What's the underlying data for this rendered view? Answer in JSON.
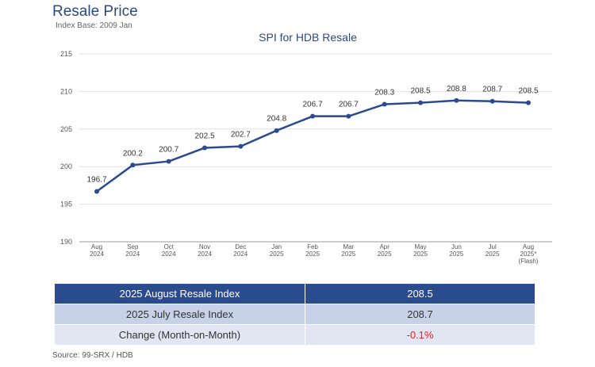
{
  "header": {
    "title": "Resale Price",
    "subtitle": "Index Base: 2009 Jan"
  },
  "chart_data": {
    "type": "line",
    "title": "SPI for HDB Resale",
    "xlabel": "",
    "ylabel": "",
    "ylim": [
      190,
      215
    ],
    "yticks": [
      190,
      195,
      200,
      205,
      210,
      215
    ],
    "grid": true,
    "legend": "none",
    "series_color": "#2a4b8d",
    "categories": [
      [
        "Aug",
        "2024"
      ],
      [
        "Sep",
        "2024"
      ],
      [
        "Oct",
        "2024"
      ],
      [
        "Nov",
        "2024"
      ],
      [
        "Dec",
        "2024"
      ],
      [
        "Jan",
        "2025"
      ],
      [
        "Feb",
        "2025"
      ],
      [
        "Mar",
        "2025"
      ],
      [
        "Apr",
        "2025"
      ],
      [
        "May",
        "2025"
      ],
      [
        "Jun",
        "2025"
      ],
      [
        "Jul",
        "2025"
      ],
      [
        "Aug",
        "2025*",
        "(Flash)"
      ]
    ],
    "values": [
      196.7,
      200.2,
      200.7,
      202.5,
      202.7,
      204.8,
      206.7,
      206.7,
      208.3,
      208.5,
      208.8,
      208.7,
      208.5
    ]
  },
  "summary_table": {
    "rows": [
      {
        "label": "2025 August Resale Index",
        "value": "208.5"
      },
      {
        "label": "2025 July Resale Index",
        "value": "208.7"
      },
      {
        "label": "Change (Month-on-Month)",
        "value": "-0.1%"
      }
    ],
    "header_color": "#2a4b8d",
    "negative_color": "#e0232d"
  },
  "footer": {
    "source": "Source: 99-SRX / HDB"
  }
}
